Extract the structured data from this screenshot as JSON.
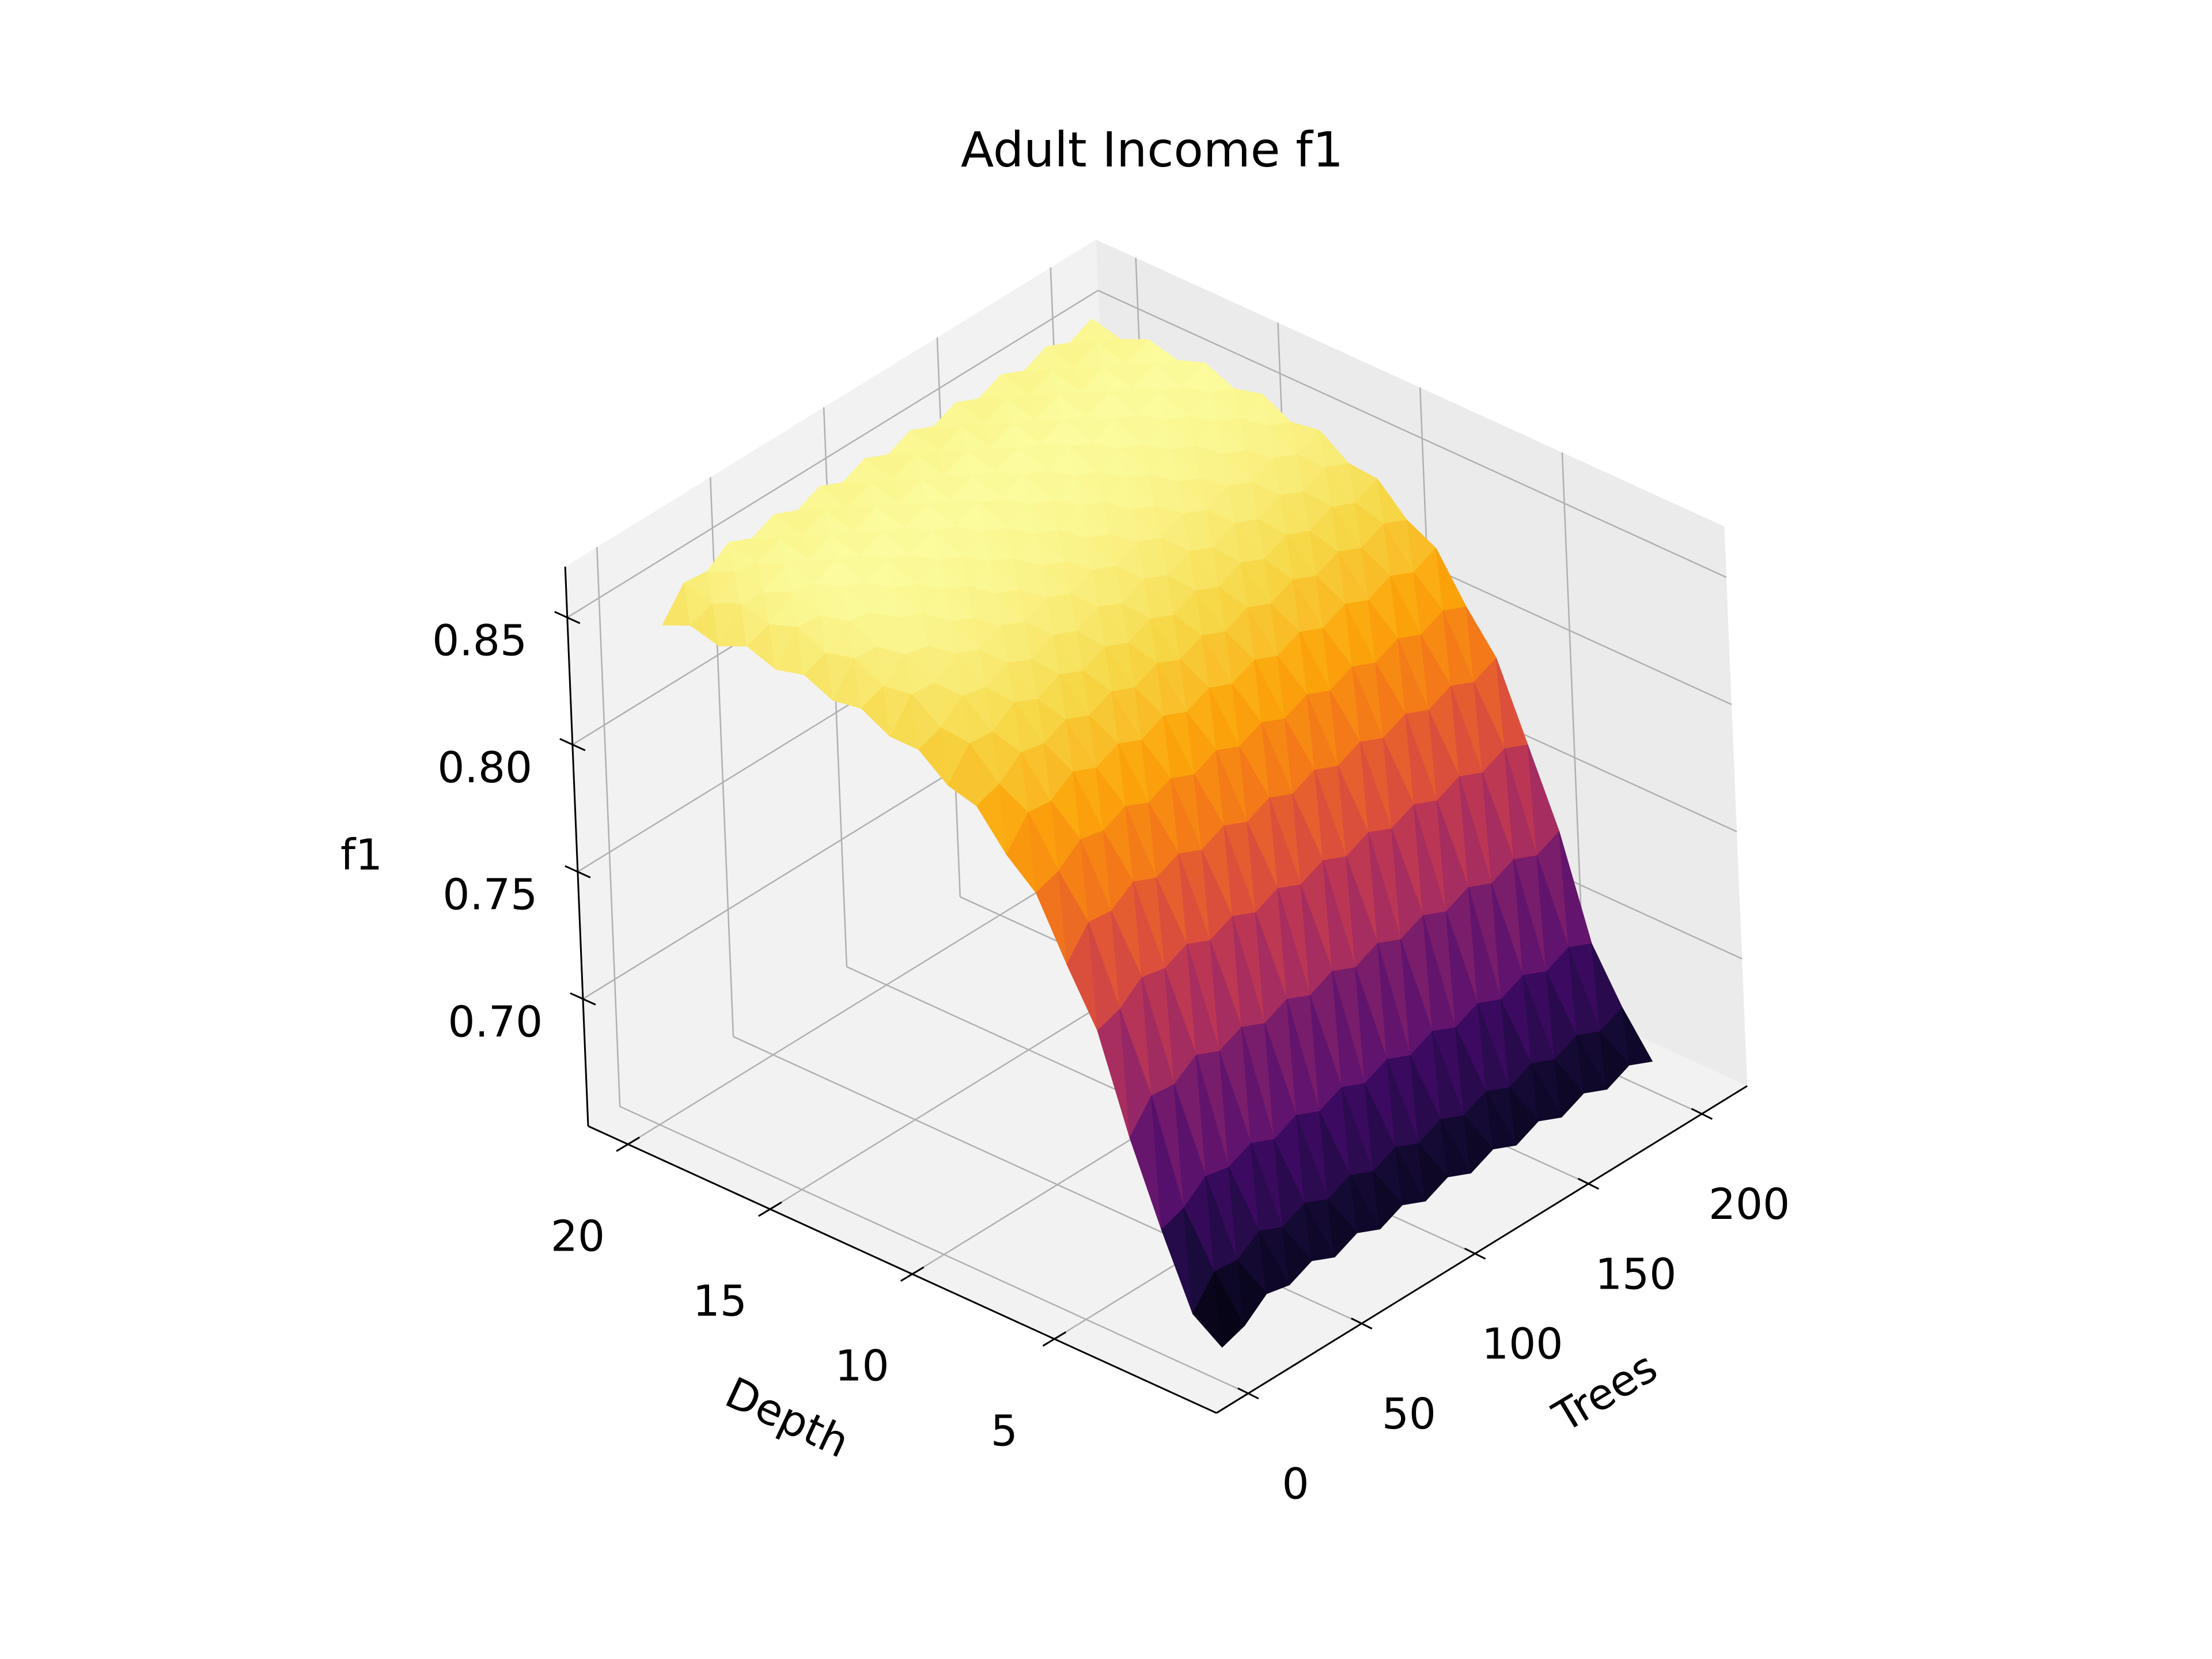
{
  "chart_data": {
    "type": "surface3d",
    "title": "Adult Income f1",
    "x_label": "Trees",
    "y_label": "Depth",
    "z_label": "f1",
    "x": [
      10,
      20,
      30,
      40,
      50,
      60,
      70,
      80,
      90,
      100,
      110,
      120,
      130,
      140,
      150,
      160,
      170,
      180,
      190,
      200
    ],
    "y": [
      1,
      2,
      3,
      4,
      5,
      6,
      7,
      8,
      9,
      10,
      11,
      12,
      13,
      14,
      15,
      16,
      17,
      18,
      19,
      20
    ],
    "z": [
      [
        0.654,
        0.657,
        0.664,
        0.662,
        0.666,
        0.662,
        0.666,
        0.662,
        0.666,
        0.662,
        0.666,
        0.662,
        0.666,
        0.662,
        0.666,
        0.662,
        0.666,
        0.662,
        0.666,
        0.662
      ],
      [
        0.662,
        0.673,
        0.672,
        0.678,
        0.674,
        0.678,
        0.674,
        0.678,
        0.674,
        0.678,
        0.674,
        0.678,
        0.674,
        0.678,
        0.674,
        0.678,
        0.674,
        0.678,
        0.674,
        0.678
      ],
      [
        0.69,
        0.693,
        0.7,
        0.698,
        0.702,
        0.698,
        0.702,
        0.698,
        0.702,
        0.698,
        0.702,
        0.698,
        0.702,
        0.698,
        0.702,
        0.698,
        0.702,
        0.698,
        0.702,
        0.698
      ],
      [
        0.721,
        0.732,
        0.731,
        0.737,
        0.733,
        0.737,
        0.733,
        0.737,
        0.733,
        0.737,
        0.733,
        0.737,
        0.733,
        0.737,
        0.733,
        0.737,
        0.733,
        0.737,
        0.733,
        0.737
      ],
      [
        0.758,
        0.761,
        0.768,
        0.766,
        0.77,
        0.766,
        0.77,
        0.766,
        0.77,
        0.766,
        0.77,
        0.766,
        0.77,
        0.766,
        0.77,
        0.766,
        0.77,
        0.766,
        0.77,
        0.766
      ],
      [
        0.779,
        0.79,
        0.789,
        0.795,
        0.791,
        0.795,
        0.791,
        0.795,
        0.791,
        0.795,
        0.791,
        0.795,
        0.791,
        0.795,
        0.791,
        0.795,
        0.791,
        0.795,
        0.791,
        0.795
      ],
      [
        0.802,
        0.805,
        0.812,
        0.81,
        0.814,
        0.81,
        0.814,
        0.81,
        0.814,
        0.81,
        0.814,
        0.81,
        0.814,
        0.81,
        0.814,
        0.81,
        0.814,
        0.81,
        0.814,
        0.81
      ],
      [
        0.812,
        0.823,
        0.822,
        0.828,
        0.824,
        0.828,
        0.824,
        0.828,
        0.824,
        0.828,
        0.824,
        0.828,
        0.824,
        0.828,
        0.824,
        0.828,
        0.824,
        0.828,
        0.824,
        0.828
      ],
      [
        0.826,
        0.829,
        0.836,
        0.834,
        0.838,
        0.834,
        0.838,
        0.834,
        0.838,
        0.834,
        0.838,
        0.834,
        0.838,
        0.834,
        0.838,
        0.834,
        0.838,
        0.834,
        0.838,
        0.834
      ],
      [
        0.829,
        0.84,
        0.839,
        0.845,
        0.841,
        0.845,
        0.841,
        0.845,
        0.841,
        0.845,
        0.841,
        0.845,
        0.841,
        0.845,
        0.841,
        0.845,
        0.841,
        0.845,
        0.841,
        0.845
      ],
      [
        0.838,
        0.841,
        0.848,
        0.846,
        0.85,
        0.846,
        0.85,
        0.846,
        0.85,
        0.846,
        0.85,
        0.846,
        0.85,
        0.846,
        0.85,
        0.846,
        0.85,
        0.846,
        0.85,
        0.846
      ],
      [
        0.838,
        0.849,
        0.848,
        0.854,
        0.85,
        0.854,
        0.85,
        0.854,
        0.85,
        0.854,
        0.85,
        0.854,
        0.85,
        0.854,
        0.85,
        0.854,
        0.85,
        0.854,
        0.85,
        0.854
      ],
      [
        0.844,
        0.847,
        0.854,
        0.852,
        0.856,
        0.852,
        0.856,
        0.852,
        0.856,
        0.852,
        0.856,
        0.852,
        0.856,
        0.852,
        0.856,
        0.852,
        0.856,
        0.852,
        0.856,
        0.852
      ],
      [
        0.842,
        0.853,
        0.852,
        0.858,
        0.854,
        0.858,
        0.854,
        0.858,
        0.854,
        0.858,
        0.854,
        0.858,
        0.854,
        0.858,
        0.854,
        0.858,
        0.854,
        0.858,
        0.854,
        0.858
      ],
      [
        0.847,
        0.85,
        0.857,
        0.855,
        0.859,
        0.855,
        0.859,
        0.855,
        0.859,
        0.855,
        0.859,
        0.855,
        0.859,
        0.855,
        0.859,
        0.855,
        0.859,
        0.855,
        0.859,
        0.855
      ],
      [
        0.844,
        0.855,
        0.854,
        0.86,
        0.856,
        0.86,
        0.856,
        0.86,
        0.856,
        0.86,
        0.856,
        0.86,
        0.856,
        0.86,
        0.856,
        0.86,
        0.856,
        0.86,
        0.856,
        0.86
      ],
      [
        0.848,
        0.851,
        0.858,
        0.856,
        0.86,
        0.856,
        0.86,
        0.856,
        0.86,
        0.856,
        0.86,
        0.856,
        0.86,
        0.856,
        0.86,
        0.856,
        0.86,
        0.856,
        0.86,
        0.856
      ],
      [
        0.843,
        0.854,
        0.853,
        0.859,
        0.855,
        0.859,
        0.855,
        0.859,
        0.855,
        0.859,
        0.855,
        0.859,
        0.855,
        0.859,
        0.855,
        0.859,
        0.855,
        0.859,
        0.855,
        0.859
      ],
      [
        0.846,
        0.849,
        0.856,
        0.854,
        0.858,
        0.854,
        0.858,
        0.854,
        0.858,
        0.854,
        0.858,
        0.854,
        0.858,
        0.854,
        0.858,
        0.854,
        0.858,
        0.854,
        0.858,
        0.854
      ],
      [
        0.841,
        0.852,
        0.851,
        0.857,
        0.853,
        0.857,
        0.853,
        0.857,
        0.853,
        0.857,
        0.853,
        0.857,
        0.853,
        0.857,
        0.853,
        0.857,
        0.853,
        0.857,
        0.853,
        0.857
      ]
    ],
    "xlim": [
      -14,
      220
    ],
    "ylim": [
      -0.7,
      21.4
    ],
    "zlim": [
      0.65,
      0.87
    ],
    "xticks": [
      0,
      50,
      100,
      150,
      200
    ],
    "yticks": [
      5,
      10,
      15,
      20
    ],
    "zticks": [
      {
        "value": 0.7,
        "label": "0.70"
      },
      0.75,
      {
        "value": 0.8,
        "label": "0.80"
      },
      0.85
    ],
    "colormap": "inferno",
    "grid": true
  }
}
